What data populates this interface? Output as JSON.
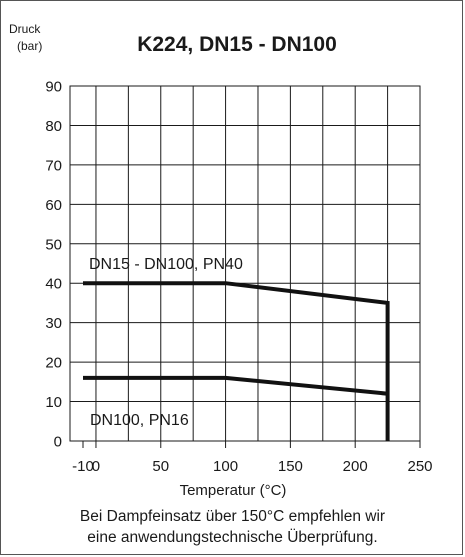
{
  "chart_data": {
    "type": "line",
    "title": "K224, DN15 - DN100",
    "ylabel": [
      "Druck",
      "(bar)"
    ],
    "xlabel": "Temperatur (°C)",
    "xlim": [
      -10,
      250
    ],
    "ylim": [
      0,
      90
    ],
    "xticks": [
      "-10",
      "0",
      "50",
      "100",
      "150",
      "200",
      "250"
    ],
    "yticks": [
      "0",
      "10",
      "20",
      "30",
      "40",
      "50",
      "60",
      "70",
      "80",
      "90"
    ],
    "grid": true,
    "series": [
      {
        "name": "DN15 - DN100, PN40",
        "x": [
          -10,
          100,
          225,
          225
        ],
        "y": [
          40,
          40,
          35,
          0
        ]
      },
      {
        "name": "DN100, PN16",
        "x": [
          -10,
          100,
          225
        ],
        "y": [
          16,
          16,
          12
        ]
      }
    ]
  },
  "footnote": {
    "line1": "Bei Dampfeinsatz über 150°C empfehlen wir",
    "line2": "eine anwendungstechnische Überprüfung."
  }
}
